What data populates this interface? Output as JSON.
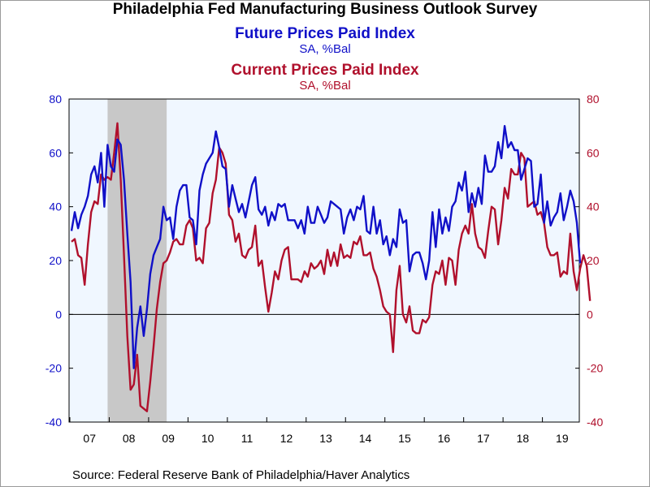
{
  "title": "Philadelphia Fed Manufacturing Business Outlook Survey",
  "series_titles": [
    {
      "name": "Future Prices Paid Index",
      "unit": "SA, %Bal"
    },
    {
      "name": "Current Prices Paid Index",
      "unit": "SA, %Bal"
    }
  ],
  "source": "Source:  Federal Reserve Bank of Philadelphia/Haver Analytics",
  "colors": {
    "future": "#1010c8",
    "current": "#b0102c",
    "plot_bg": "#f0f7ff",
    "recession": "#c8c8c8"
  },
  "chart_data": {
    "type": "line",
    "x_unit": "monthly, 2007-01 to 2019-11",
    "x_tick_labels": [
      "07",
      "08",
      "09",
      "10",
      "11",
      "12",
      "13",
      "14",
      "15",
      "16",
      "17",
      "18",
      "19"
    ],
    "ylim": [
      -40,
      80
    ],
    "y_ticks_left": [
      "80",
      "60",
      "40",
      "20",
      "0",
      "-20",
      "-40"
    ],
    "y_ticks_right": [
      "80",
      "60",
      "40",
      "20",
      "0",
      "-20",
      "-40"
    ],
    "zero_line": true,
    "grid": false,
    "recession": {
      "start": "2007-12",
      "end": "2009-06"
    },
    "x_start": "2007-01",
    "series": [
      {
        "name": "Future Prices Paid Index",
        "color": "#1010c8",
        "values": [
          31,
          38,
          32,
          37,
          40,
          44,
          52,
          55,
          49,
          60,
          40,
          63,
          55,
          53,
          65,
          63,
          50,
          30,
          12,
          -20,
          -5,
          3,
          -8,
          2,
          15,
          22,
          25,
          28,
          40,
          35,
          36,
          28,
          40,
          46,
          48,
          48,
          36,
          35,
          26,
          46,
          52,
          56,
          58,
          60,
          68,
          62,
          55,
          54,
          40,
          48,
          43,
          38,
          41,
          36,
          42,
          48,
          51,
          39,
          37,
          40,
          33,
          38,
          35,
          41,
          40,
          41,
          35,
          35,
          35,
          32,
          35,
          30,
          40,
          34,
          34,
          40,
          37,
          34,
          36,
          42,
          41,
          40,
          39,
          30,
          36,
          39,
          35,
          40,
          39,
          44,
          31,
          30,
          40,
          30,
          35,
          26,
          29,
          22,
          28,
          25,
          39,
          34,
          35,
          16,
          22,
          23,
          23,
          19,
          13,
          20,
          38,
          25,
          39,
          30,
          36,
          31,
          40,
          42,
          49,
          46,
          53,
          38,
          45,
          40,
          47,
          41,
          59,
          53,
          53,
          55,
          64,
          58,
          70,
          62,
          64,
          61,
          61,
          50,
          54,
          58,
          57,
          40,
          41,
          52,
          34,
          42,
          33,
          36,
          38,
          45,
          35,
          40,
          46,
          42,
          34,
          19
        ]
      },
      {
        "name": "Current Prices Paid Index",
        "color": "#b0102c",
        "values": [
          27,
          28,
          22,
          21,
          11,
          26,
          38,
          42,
          41,
          52,
          50,
          51,
          50,
          60,
          71,
          50,
          22,
          -8,
          -28,
          -26,
          -15,
          -34,
          -35,
          -36,
          -25,
          -12,
          2,
          12,
          19,
          20,
          23,
          27,
          28,
          26,
          26,
          33,
          35,
          32,
          20,
          21,
          19,
          32,
          34,
          45,
          50,
          62,
          60,
          56,
          37,
          35,
          27,
          30,
          22,
          21,
          24,
          25,
          33,
          18,
          20,
          10,
          1,
          8,
          16,
          13,
          20,
          24,
          25,
          13,
          13,
          13,
          12,
          16,
          14,
          19,
          17,
          18,
          20,
          15,
          24,
          18,
          23,
          18,
          26,
          21,
          22,
          21,
          27,
          26,
          29,
          22,
          22,
          23,
          17,
          14,
          9,
          3,
          1,
          0,
          -14,
          9,
          18,
          0,
          -3,
          3,
          -6,
          -7,
          -7,
          -2,
          -3,
          -1,
          11,
          16,
          15,
          20,
          11,
          21,
          20,
          11,
          24,
          30,
          33,
          30,
          41,
          30,
          25,
          24,
          21,
          31,
          40,
          39,
          26,
          35,
          47,
          43,
          54,
          52,
          52,
          60,
          58,
          40,
          41,
          42,
          37,
          38,
          34,
          25,
          22,
          22,
          23,
          14,
          16,
          15,
          30,
          16,
          9,
          17,
          22,
          18,
          5
        ]
      }
    ]
  }
}
